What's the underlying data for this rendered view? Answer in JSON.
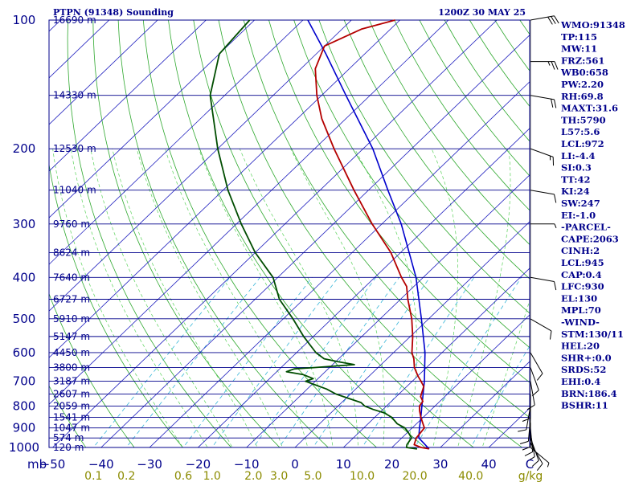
{
  "header": {
    "station_title": "PTPN (91348) Sounding",
    "valid_time": "1200Z 30 MAY 25"
  },
  "chart_data": {
    "type": "skew-t",
    "x_unit_label": "C",
    "mixing_unit_label": "g/kg",
    "pressure_axis_prefix": "mb",
    "p_range": [
      1000,
      100
    ],
    "t_range_at_surface": [
      -50,
      50
    ],
    "pressure_levels": [
      100,
      200,
      300,
      400,
      500,
      600,
      700,
      800,
      900,
      1000
    ],
    "pressure_labels": [
      "100",
      "200",
      "300",
      "400",
      "500",
      "600",
      "700",
      "800",
      "900",
      "1000"
    ],
    "temperature_ticks": [
      -50,
      -40,
      -30,
      -20,
      -10,
      0,
      10,
      20,
      30,
      40
    ],
    "temperature_tick_labels": [
      "−50",
      "−40",
      "−30",
      "−20",
      "−10",
      "0",
      "10",
      "20",
      "30",
      "40"
    ],
    "mixing_ratios": [
      0.1,
      0.2,
      0.6,
      1.0,
      2.0,
      3.0,
      5.0,
      10.0,
      20.0,
      40.0
    ],
    "mixing_ratio_labels": [
      "0.1",
      "0.2",
      "0.6",
      "1.0",
      "2.0",
      "3.0",
      "5.0",
      "10.0",
      "20.0",
      "40.0"
    ],
    "height_levels": [
      {
        "p": 100,
        "label": "16690 m"
      },
      {
        "p": 150,
        "label": "14330 m"
      },
      {
        "p": 200,
        "label": "12530 m"
      },
      {
        "p": 250,
        "label": "11040 m"
      },
      {
        "p": 300,
        "label": "9760 m"
      },
      {
        "p": 350,
        "label": "8624 m"
      },
      {
        "p": 400,
        "label": "7640 m"
      },
      {
        "p": 450,
        "label": "6727 m"
      },
      {
        "p": 500,
        "label": "5910 m"
      },
      {
        "p": 550,
        "label": "5147 m"
      },
      {
        "p": 600,
        "label": "4450 m"
      },
      {
        "p": 650,
        "label": "3800 m"
      },
      {
        "p": 700,
        "label": "3187 m"
      },
      {
        "p": 750,
        "label": "2607 m"
      },
      {
        "p": 800,
        "label": "2059 m"
      },
      {
        "p": 850,
        "label": "1541 m"
      },
      {
        "p": 900,
        "label": "1047 m"
      },
      {
        "p": 950,
        "label": "574 m"
      },
      {
        "p": 1000,
        "label": "120 m"
      }
    ],
    "temperature_profile": [
      {
        "p": 1008,
        "t": 28.0
      },
      {
        "p": 1000,
        "t": 26.0
      },
      {
        "p": 985,
        "t": 24.0
      },
      {
        "p": 950,
        "t": 23.0
      },
      {
        "p": 900,
        "t": 22.5
      },
      {
        "p": 850,
        "t": 19.5
      },
      {
        "p": 820,
        "t": 17.8
      },
      {
        "p": 800,
        "t": 16.8
      },
      {
        "p": 780,
        "t": 16.5
      },
      {
        "p": 760,
        "t": 15.0
      },
      {
        "p": 720,
        "t": 13.5
      },
      {
        "p": 700,
        "t": 11.8
      },
      {
        "p": 680,
        "t": 10.0
      },
      {
        "p": 650,
        "t": 7.5
      },
      {
        "p": 620,
        "t": 5.5
      },
      {
        "p": 600,
        "t": 3.8
      },
      {
        "p": 550,
        "t": 0.5
      },
      {
        "p": 500,
        "t": -3.5
      },
      {
        "p": 450,
        "t": -8.5
      },
      {
        "p": 420,
        "t": -11.5
      },
      {
        "p": 400,
        "t": -14.5
      },
      {
        "p": 350,
        "t": -22.0
      },
      {
        "p": 300,
        "t": -32.0
      },
      {
        "p": 250,
        "t": -43.0
      },
      {
        "p": 200,
        "t": -56.0
      },
      {
        "p": 170,
        "t": -65.0
      },
      {
        "p": 150,
        "t": -71.0
      },
      {
        "p": 130,
        "t": -77.0
      },
      {
        "p": 115,
        "t": -80.0
      },
      {
        "p": 105,
        "t": -76.0
      },
      {
        "p": 100,
        "t": -71.0
      }
    ],
    "dewpoint_profile": [
      {
        "p": 1008,
        "t": 25.5
      },
      {
        "p": 1000,
        "t": 23.0
      },
      {
        "p": 985,
        "t": 22.5
      },
      {
        "p": 950,
        "t": 22.0
      },
      {
        "p": 920,
        "t": 20.0
      },
      {
        "p": 900,
        "t": 18.5
      },
      {
        "p": 880,
        "t": 16.0
      },
      {
        "p": 850,
        "t": 13.5
      },
      {
        "p": 830,
        "t": 11.0
      },
      {
        "p": 815,
        "t": 8.0
      },
      {
        "p": 800,
        "t": 5.5
      },
      {
        "p": 785,
        "t": 4.0
      },
      {
        "p": 770,
        "t": 1.0
      },
      {
        "p": 750,
        "t": -3.0
      },
      {
        "p": 730,
        "t": -6.0
      },
      {
        "p": 710,
        "t": -10.0
      },
      {
        "p": 700,
        "t": -12.0
      },
      {
        "p": 690,
        "t": -11.0
      },
      {
        "p": 675,
        "t": -14.0
      },
      {
        "p": 665,
        "t": -18.0
      },
      {
        "p": 655,
        "t": -17.0
      },
      {
        "p": 650,
        "t": -13.0
      },
      {
        "p": 640,
        "t": -5.5
      },
      {
        "p": 630,
        "t": -9.5
      },
      {
        "p": 620,
        "t": -13.0
      },
      {
        "p": 600,
        "t": -16.0
      },
      {
        "p": 550,
        "t": -22.0
      },
      {
        "p": 500,
        "t": -28.0
      },
      {
        "p": 450,
        "t": -35.0
      },
      {
        "p": 400,
        "t": -41.0
      },
      {
        "p": 350,
        "t": -50.0
      },
      {
        "p": 300,
        "t": -59.0
      },
      {
        "p": 250,
        "t": -69.0
      },
      {
        "p": 200,
        "t": -80.0
      },
      {
        "p": 150,
        "t": -93.0
      },
      {
        "p": 120,
        "t": -100.0
      },
      {
        "p": 100,
        "t": -101.0
      }
    ],
    "parcel_profile": [
      {
        "p": 1008,
        "t": 28.0
      },
      {
        "p": 950,
        "t": 23.5
      },
      {
        "p": 900,
        "t": 21.5
      },
      {
        "p": 850,
        "t": 19.5
      },
      {
        "p": 800,
        "t": 17.3
      },
      {
        "p": 700,
        "t": 12.5
      },
      {
        "p": 600,
        "t": 6.5
      },
      {
        "p": 500,
        "t": -1.5
      },
      {
        "p": 400,
        "t": -11.5
      },
      {
        "p": 300,
        "t": -26.0
      },
      {
        "p": 250,
        "t": -36.0
      },
      {
        "p": 200,
        "t": -48.0
      },
      {
        "p": 150,
        "t": -65.0
      },
      {
        "p": 120,
        "t": -78.0
      },
      {
        "p": 100,
        "t": -89.0
      }
    ],
    "wind_barbs": [
      {
        "p": 1000,
        "dir": 130,
        "kt": 5
      },
      {
        "p": 975,
        "dir": 150,
        "kt": 10
      },
      {
        "p": 950,
        "dir": 160,
        "kt": 10
      },
      {
        "p": 925,
        "dir": 170,
        "kt": 10
      },
      {
        "p": 900,
        "dir": 175,
        "kt": 10
      },
      {
        "p": 875,
        "dir": 180,
        "kt": 10
      },
      {
        "p": 850,
        "dir": 185,
        "kt": 10
      },
      {
        "p": 800,
        "dir": 190,
        "kt": 10
      },
      {
        "p": 750,
        "dir": 180,
        "kt": 10
      },
      {
        "p": 700,
        "dir": 170,
        "kt": 10
      },
      {
        "p": 650,
        "dir": 160,
        "kt": 10
      },
      {
        "p": 600,
        "dir": 150,
        "kt": 10
      },
      {
        "p": 500,
        "dir": 120,
        "kt": 10
      },
      {
        "p": 400,
        "dir": 100,
        "kt": 10
      },
      {
        "p": 300,
        "dir": 90,
        "kt": 5
      },
      {
        "p": 250,
        "dir": 100,
        "kt": 10
      },
      {
        "p": 200,
        "dir": 110,
        "kt": 15
      },
      {
        "p": 150,
        "dir": 100,
        "kt": 20
      },
      {
        "p": 125,
        "dir": 90,
        "kt": 25
      },
      {
        "p": 100,
        "dir": 80,
        "kt": 30
      }
    ]
  },
  "indices": [
    "WMO:91348",
    "TP:115",
    "MW:11",
    "FRZ:561",
    "WB0:658",
    "PW:2.20",
    "RH:69.8",
    "MAXT:31.6",
    "TH:5790",
    "L57:5.6",
    "LCL:972",
    "LI:-4.4",
    "SI:0.3",
    "TT:42",
    "KI:24",
    "SW:247",
    "EI:-1.0",
    "-PARCEL-",
    "CAPE:2063",
    "CINH:2",
    "LCL:945",
    "CAP:0.4",
    "LFC:930",
    "EL:130",
    "MPL:70",
    "-WIND-",
    "STM:130/11",
    "HEL:20",
    "SHR+:0.0",
    "SRDS:52",
    "EHI:0.4",
    "BRN:186.4",
    "BSHR:11"
  ],
  "colors": {
    "isobar": "#00008b",
    "isotherm": "#1e1ebe",
    "dry_adiabat": "#2ea82e",
    "moist_adiabat": "#5ad25a",
    "mixing_ratio": "#38b6d8",
    "temperature": "#b40000",
    "dewpoint": "#004d00",
    "parcel": "#0000cc",
    "wind_barb": "#000000",
    "label": "#00008b",
    "mixing_label": "#8b8b00"
  }
}
